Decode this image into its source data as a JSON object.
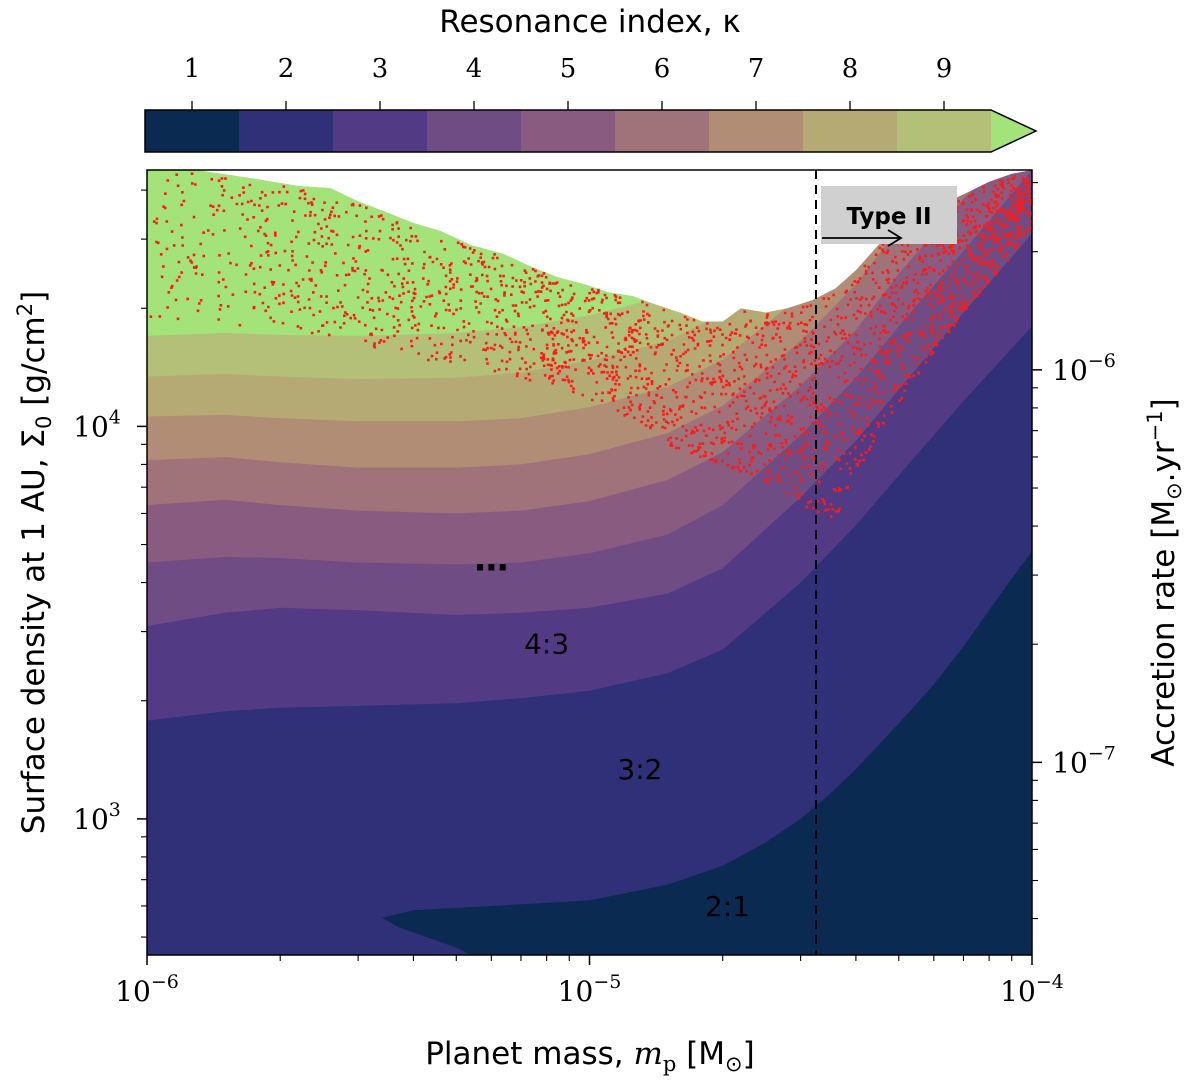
{
  "chart_data": {
    "type": "heatmap",
    "xscale": "log",
    "yscale": "log",
    "xlim": [
      1e-06,
      0.0001
    ],
    "ylim": [
      450,
      45000
    ],
    "y2lim_accretion": [
      3.23e-08,
      3.23e-06
    ],
    "xlabel_prefix": "Planet mass,",
    "xlabel_unit": "[M",
    "ylabel_main": "Surface density at 1 AU, Σ",
    "ylabel_unit": "[g/cm",
    "y2label_main": "Accretion rate [M",
    "y2label_unit": ".yr",
    "x_ticks": [
      {
        "value": 1e-06,
        "base": "10",
        "exp": "−6"
      },
      {
        "value": 1e-05,
        "base": "10",
        "exp": "−5"
      },
      {
        "value": 0.0001,
        "base": "10",
        "exp": "−4"
      }
    ],
    "y_ticks": [
      {
        "value": 1000,
        "base": "10",
        "exp": "3"
      },
      {
        "value": 10000,
        "base": "10",
        "exp": "4"
      }
    ],
    "y2_ticks": [
      {
        "value": 1e-07,
        "base": "10",
        "exp": "−7"
      },
      {
        "value": 1e-06,
        "base": "10",
        "exp": "−6"
      }
    ],
    "colorbar": {
      "label": "Resonance index, κ",
      "ticks": [
        "1",
        "2",
        "3",
        "4",
        "5",
        "6",
        "7",
        "8",
        "9"
      ],
      "colors": [
        "#0b2a52",
        "#2f3078",
        "#533a85",
        "#704c85",
        "#8a5b80",
        "#a0727a",
        "#b08d74",
        "#b6aa74",
        "#b4c077",
        "#a3e37a"
      ],
      "extend": "max"
    },
    "region_labels": [
      {
        "text": "2:1",
        "mass": 2.05e-05,
        "sigma": 600
      },
      {
        "text": "3:2",
        "mass": 1.3e-05,
        "sigma": 1340
      },
      {
        "text": "4:3",
        "mass": 8e-06,
        "sigma": 2800
      },
      {
        "text": "…",
        "mass": 6e-06,
        "sigma": 4400
      }
    ],
    "type_ii_mass": 3.25e-05,
    "type_ii_label": "Type II",
    "unstable_marker_color": "#ff1a1a"
  }
}
